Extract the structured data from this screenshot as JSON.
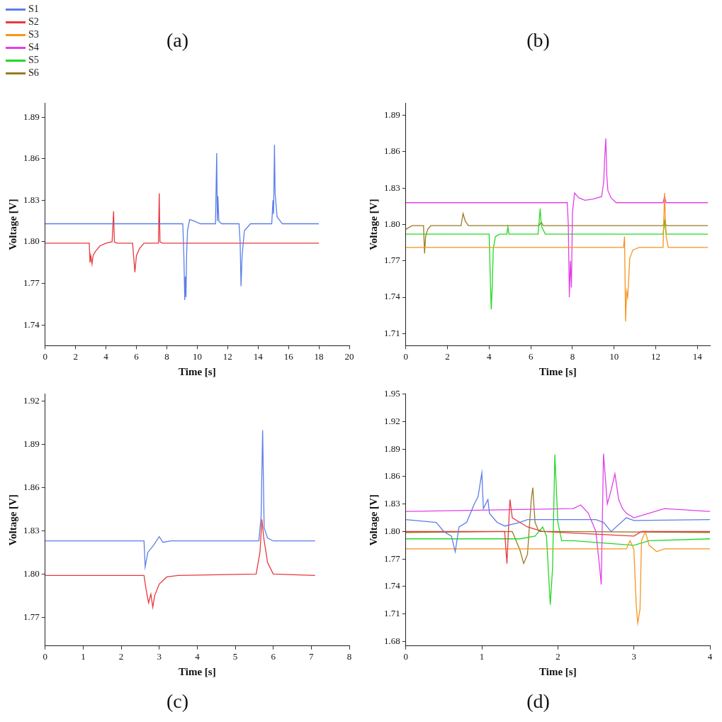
{
  "chart_data": [
    {
      "type": "line",
      "title": "(a)",
      "x_label": "Time [s]",
      "y_label": "Voltage [V]",
      "grid": false,
      "legend": "top left",
      "xlim": [
        0,
        20
      ],
      "xticks": [
        0,
        2,
        4,
        6,
        8,
        10,
        12,
        14,
        16,
        18,
        20
      ],
      "ylim": [
        1.725,
        1.9
      ],
      "yticks": [
        1.74,
        1.77,
        {
          "value": 1.8,
          "label": "1.80"
        },
        1.83,
        1.86,
        1.89
      ],
      "series": [
        {
          "name": "S1",
          "color": "#5b7ee8",
          "x": [
            0,
            9.05,
            9.12,
            9.18,
            9.22,
            9.26,
            9.3,
            9.36,
            9.5,
            9.8,
            10.2,
            11.2,
            11.28,
            11.32,
            11.36,
            11.42,
            11.6,
            12.75,
            12.82,
            12.88,
            12.95,
            13.1,
            13.5,
            14.9,
            14.98,
            15.02,
            15.08,
            15.12,
            15.25,
            15.6,
            18
          ],
          "values": [
            1.813,
            1.813,
            1.79,
            1.758,
            1.775,
            1.76,
            1.79,
            1.808,
            1.816,
            1.815,
            1.813,
            1.813,
            1.864,
            1.815,
            1.833,
            1.815,
            1.813,
            1.813,
            1.8,
            1.768,
            1.79,
            1.808,
            1.813,
            1.813,
            1.83,
            1.82,
            1.87,
            1.835,
            1.818,
            1.813,
            1.813
          ]
        },
        {
          "name": "S2",
          "color": "#e8383d",
          "x": [
            0,
            2.9,
            2.95,
            3.0,
            3.08,
            3.15,
            3.3,
            3.6,
            4.0,
            4.4,
            4.5,
            4.55,
            4.7,
            5.75,
            5.85,
            5.9,
            6.0,
            6.2,
            6.5,
            7.45,
            7.5,
            7.55,
            7.7,
            18
          ],
          "values": [
            1.799,
            1.799,
            1.785,
            1.79,
            1.784,
            1.79,
            1.793,
            1.797,
            1.799,
            1.8,
            1.822,
            1.8,
            1.799,
            1.799,
            1.785,
            1.778,
            1.79,
            1.795,
            1.799,
            1.799,
            1.835,
            1.8,
            1.799,
            1.799
          ]
        }
      ]
    },
    {
      "type": "line",
      "title": "(b)",
      "x_label": "Time [s]",
      "y_label": "Voltage [V]",
      "grid": false,
      "legend": "top left",
      "xlim": [
        0,
        14.6
      ],
      "xticks": [
        0,
        2,
        4,
        6,
        8,
        10,
        12,
        14
      ],
      "ylim": [
        1.7,
        1.9
      ],
      "yticks": [
        1.71,
        1.74,
        1.77,
        {
          "value": 1.8,
          "label": "1.80"
        },
        1.83,
        1.86,
        1.89
      ],
      "series": [
        {
          "name": "S3",
          "color": "#f7941d",
          "x": [
            0,
            10.45,
            10.5,
            10.55,
            10.6,
            10.65,
            10.7,
            10.75,
            10.9,
            11.2,
            12.35,
            12.42,
            12.46,
            12.5,
            12.6,
            14.5
          ],
          "values": [
            1.781,
            1.781,
            1.79,
            1.72,
            1.745,
            1.74,
            1.755,
            1.772,
            1.779,
            1.781,
            1.781,
            1.826,
            1.805,
            1.79,
            1.781,
            1.781
          ]
        },
        {
          "name": "S4",
          "color": "#e040e8",
          "x": [
            0,
            7.75,
            7.8,
            7.85,
            7.9,
            7.95,
            8.0,
            8.1,
            8.3,
            8.6,
            9.0,
            9.4,
            9.5,
            9.55,
            9.6,
            9.65,
            9.7,
            9.85,
            10.1,
            12.35,
            12.42,
            12.5,
            14.5
          ],
          "values": [
            1.818,
            1.818,
            1.8,
            1.74,
            1.77,
            1.748,
            1.81,
            1.826,
            1.822,
            1.82,
            1.821,
            1.823,
            1.835,
            1.856,
            1.871,
            1.84,
            1.828,
            1.822,
            1.818,
            1.818,
            1.823,
            1.818,
            1.818
          ]
        },
        {
          "name": "S5",
          "color": "#22d822",
          "x": [
            0,
            4.0,
            4.05,
            4.1,
            4.15,
            4.2,
            4.3,
            4.5,
            4.85,
            4.9,
            4.95,
            6.35,
            6.45,
            6.5,
            6.55,
            6.7,
            12.35,
            12.42,
            12.5,
            14.5
          ],
          "values": [
            1.792,
            1.792,
            1.76,
            1.73,
            1.75,
            1.78,
            1.79,
            1.792,
            1.792,
            1.798,
            1.792,
            1.792,
            1.813,
            1.8,
            1.797,
            1.792,
            1.792,
            1.803,
            1.792,
            1.792
          ]
        },
        {
          "name": "S6",
          "color": "#9b7a25",
          "x": [
            0,
            0.3,
            0.85,
            0.9,
            0.95,
            1.05,
            1.2,
            2.65,
            2.75,
            2.85,
            3.0,
            6.4,
            6.5,
            6.6,
            12.35,
            12.42,
            12.5,
            14.5
          ],
          "values": [
            1.796,
            1.799,
            1.799,
            1.776,
            1.79,
            1.796,
            1.799,
            1.799,
            1.809,
            1.803,
            1.799,
            1.799,
            1.802,
            1.799,
            1.799,
            1.803,
            1.799,
            1.799
          ]
        }
      ]
    },
    {
      "type": "line",
      "title": "(c)",
      "x_label": "Time [s]",
      "y_label": "Voltage [V]",
      "grid": false,
      "legend": "top left",
      "xlim": [
        0,
        8
      ],
      "xticks": [
        0,
        1,
        2,
        3,
        4,
        5,
        6,
        7,
        8
      ],
      "ylim": [
        1.75,
        1.925
      ],
      "yticks": [
        1.77,
        {
          "value": 1.8,
          "label": "1.80"
        },
        1.83,
        1.86,
        1.89,
        1.92
      ],
      "series": [
        {
          "name": "S1",
          "color": "#5b7ee8",
          "x": [
            0,
            2.6,
            2.63,
            2.7,
            2.85,
            3.0,
            3.1,
            3.3,
            5.62,
            5.68,
            5.72,
            5.76,
            5.85,
            6.0,
            7.1
          ],
          "values": [
            1.823,
            1.823,
            1.805,
            1.815,
            1.82,
            1.826,
            1.822,
            1.823,
            1.823,
            1.84,
            1.9,
            1.832,
            1.825,
            1.823,
            1.823
          ]
        },
        {
          "name": "S2",
          "color": "#e8383d",
          "x": [
            0,
            2.6,
            2.65,
            2.72,
            2.78,
            2.83,
            2.88,
            3.0,
            3.2,
            3.5,
            5.55,
            5.65,
            5.7,
            5.75,
            5.85,
            6.0,
            7.1
          ],
          "values": [
            1.799,
            1.799,
            1.79,
            1.78,
            1.786,
            1.777,
            1.785,
            1.793,
            1.798,
            1.799,
            1.8,
            1.815,
            1.838,
            1.825,
            1.808,
            1.8,
            1.799
          ]
        }
      ]
    },
    {
      "type": "line",
      "title": "(d)",
      "x_label": "Time [s]",
      "y_label": "Voltage [V]",
      "grid": false,
      "legend": "top left",
      "xlim": [
        0,
        4
      ],
      "xticks": [
        0,
        1,
        2,
        3,
        4
      ],
      "ylim": [
        1.675,
        1.95
      ],
      "yticks": [
        1.68,
        1.71,
        1.74,
        1.77,
        {
          "value": 1.8,
          "label": "1.80"
        },
        1.83,
        1.86,
        1.89,
        1.92,
        1.95
      ],
      "series": [
        {
          "name": "S1",
          "color": "#5b7ee8",
          "x": [
            0,
            0.4,
            0.5,
            0.6,
            0.65,
            0.7,
            0.8,
            0.9,
            0.95,
            1.0,
            1.02,
            1.08,
            1.1,
            1.2,
            1.3,
            1.5,
            1.6,
            2.5,
            2.6,
            2.7,
            2.9,
            3.0,
            4.0
          ],
          "values": [
            1.813,
            1.81,
            1.8,
            1.795,
            1.778,
            1.805,
            1.81,
            1.83,
            1.838,
            1.864,
            1.825,
            1.835,
            1.82,
            1.81,
            1.806,
            1.81,
            1.813,
            1.813,
            1.81,
            1.8,
            1.815,
            1.812,
            1.813
          ]
        },
        {
          "name": "S2",
          "color": "#e8383d",
          "x": [
            0,
            1.3,
            1.33,
            1.36,
            1.37,
            1.4,
            1.5,
            1.6,
            1.8,
            3.0,
            3.1,
            4.0
          ],
          "values": [
            1.8,
            1.8,
            1.765,
            1.82,
            1.835,
            1.815,
            1.81,
            1.805,
            1.8,
            1.795,
            1.8,
            1.8
          ]
        },
        {
          "name": "S3",
          "color": "#f7941d",
          "x": [
            0,
            2.9,
            2.95,
            3.0,
            3.03,
            3.05,
            3.08,
            3.1,
            3.15,
            3.2,
            3.3,
            3.4,
            4.0
          ],
          "values": [
            1.781,
            1.781,
            1.79,
            1.78,
            1.72,
            1.7,
            1.715,
            1.79,
            1.8,
            1.785,
            1.778,
            1.781,
            1.781
          ]
        },
        {
          "name": "S4",
          "color": "#e040e8",
          "x": [
            0,
            2.2,
            2.3,
            2.4,
            2.5,
            2.55,
            2.57,
            2.6,
            2.65,
            2.7,
            2.75,
            2.8,
            2.85,
            2.9,
            3.0,
            3.2,
            3.4,
            4.0
          ],
          "values": [
            1.822,
            1.825,
            1.829,
            1.82,
            1.8,
            1.76,
            1.742,
            1.885,
            1.83,
            1.845,
            1.863,
            1.835,
            1.825,
            1.82,
            1.815,
            1.82,
            1.825,
            1.822
          ]
        },
        {
          "name": "S5",
          "color": "#22d822",
          "x": [
            0,
            1.5,
            1.7,
            1.8,
            1.85,
            1.9,
            1.93,
            1.96,
            2.0,
            2.05,
            2.2,
            3.0,
            3.2,
            4.0
          ],
          "values": [
            1.792,
            1.792,
            1.795,
            1.805,
            1.795,
            1.72,
            1.76,
            1.884,
            1.81,
            1.79,
            1.79,
            1.785,
            1.79,
            1.792
          ]
        },
        {
          "name": "S6",
          "color": "#9b7a25",
          "x": [
            0,
            1.4,
            1.45,
            1.5,
            1.55,
            1.6,
            1.65,
            1.67,
            1.7,
            1.75,
            2.0,
            4.0
          ],
          "values": [
            1.799,
            1.8,
            1.79,
            1.78,
            1.765,
            1.775,
            1.835,
            1.848,
            1.81,
            1.8,
            1.8,
            1.799
          ]
        }
      ]
    }
  ]
}
